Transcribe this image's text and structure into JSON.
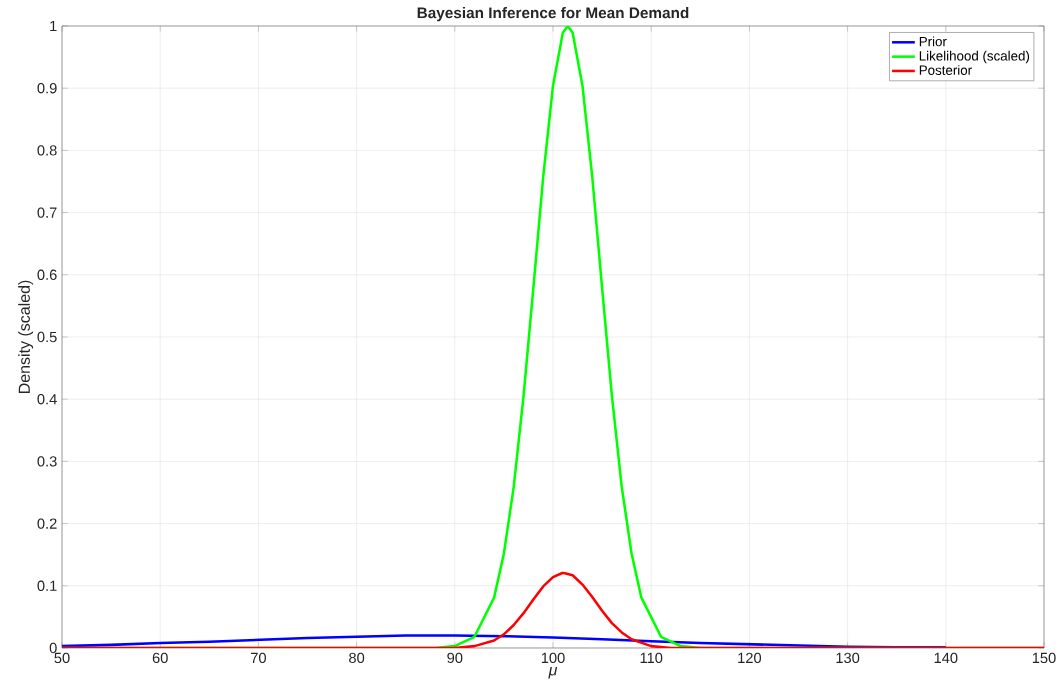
{
  "chart_data": {
    "type": "line",
    "title": "Bayesian Inference for Mean Demand",
    "xlabel": "μ",
    "ylabel": "Density (scaled)",
    "xlim": [
      50,
      150
    ],
    "ylim": [
      0,
      1
    ],
    "xticks": [
      50,
      60,
      70,
      80,
      90,
      100,
      110,
      120,
      130,
      140,
      150
    ],
    "yticks": [
      0,
      0.1,
      0.2,
      0.3,
      0.4,
      0.5,
      0.6,
      0.7,
      0.8,
      0.9,
      1
    ],
    "grid": true,
    "legend": "top right",
    "marker": "none",
    "line_style": "solid",
    "series": [
      {
        "name": "Prior",
        "color": "#0000ff",
        "x": [
          50,
          55,
          60,
          65,
          70,
          75,
          80,
          85,
          88,
          90,
          95,
          100,
          105,
          110,
          115,
          120,
          125,
          130,
          135,
          140
        ],
        "values": [
          0.003,
          0.005,
          0.008,
          0.01,
          0.013,
          0.016,
          0.018,
          0.02,
          0.02,
          0.02,
          0.019,
          0.017,
          0.014,
          0.011,
          0.008,
          0.006,
          0.004,
          0.002,
          0.001,
          0.001
        ]
      },
      {
        "name": "Likelihood (scaled)",
        "color": "#00ff00",
        "x": [
          50,
          88,
          90,
          92,
          94,
          95,
          96,
          97,
          98,
          99,
          100,
          101,
          101.5,
          102,
          103,
          104,
          105,
          106,
          107,
          108,
          109,
          111,
          113,
          115,
          150
        ],
        "values": [
          0,
          0,
          0.003,
          0.018,
          0.081,
          0.152,
          0.259,
          0.405,
          0.579,
          0.757,
          0.904,
          0.989,
          1,
          0.989,
          0.904,
          0.757,
          0.579,
          0.405,
          0.259,
          0.152,
          0.081,
          0.018,
          0.003,
          0,
          0
        ]
      },
      {
        "name": "Posterior",
        "color": "#ff0000",
        "x": [
          50,
          88,
          90,
          92,
          94,
          95,
          96,
          97,
          98,
          99,
          100,
          101,
          102,
          103,
          104,
          105,
          106,
          107,
          108,
          110,
          112,
          114,
          150
        ],
        "values": [
          0,
          0,
          0,
          0.003,
          0.012,
          0.022,
          0.037,
          0.056,
          0.078,
          0.099,
          0.114,
          0.121,
          0.117,
          0.102,
          0.082,
          0.06,
          0.04,
          0.025,
          0.014,
          0.003,
          0,
          0,
          0
        ]
      }
    ]
  }
}
